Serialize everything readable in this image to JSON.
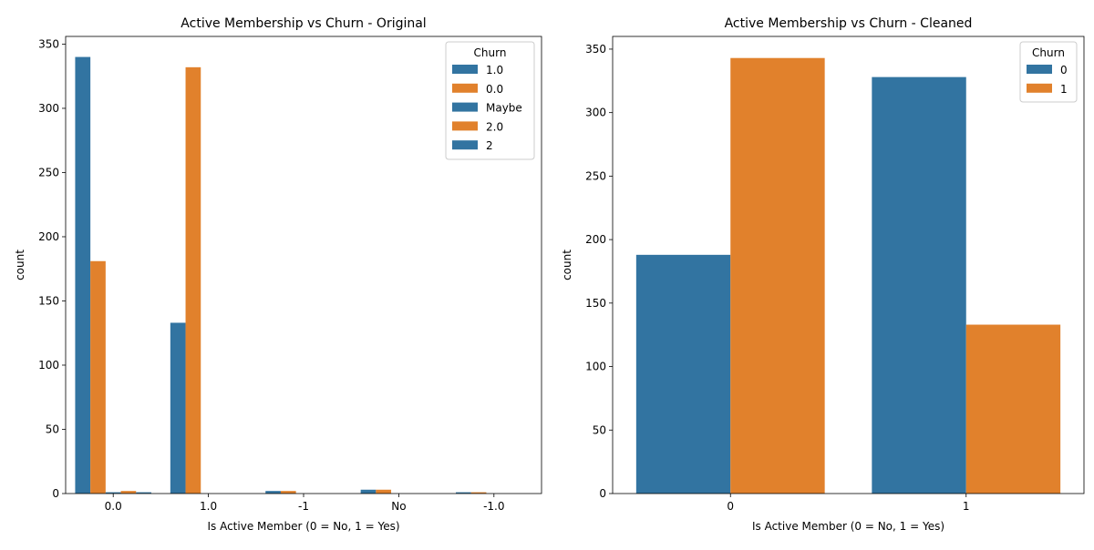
{
  "chart_data": [
    {
      "type": "bar",
      "title": "Active Membership vs Churn - Original",
      "xlabel": "Is Active Member (0 = No, 1 = Yes)",
      "ylabel": "count",
      "categories": [
        "0.0",
        "1.0",
        "-1",
        "No",
        "-1.0"
      ],
      "ylim": [
        0,
        356
      ],
      "yticks": [
        0,
        50,
        100,
        150,
        200,
        250,
        300,
        350
      ],
      "legend": {
        "title": "Churn",
        "placement": "top-right"
      },
      "series": [
        {
          "name": "1.0",
          "color": "#3274a1",
          "values": [
            340,
            133,
            2,
            3,
            1
          ]
        },
        {
          "name": "0.0",
          "color": "#e1812c",
          "values": [
            181,
            332,
            2,
            3,
            1
          ]
        },
        {
          "name": "Maybe",
          "color": "#3274a1",
          "values": [
            1,
            0,
            0,
            0,
            0
          ]
        },
        {
          "name": "2.0",
          "color": "#e1812c",
          "values": [
            2,
            0,
            0,
            0,
            0
          ]
        },
        {
          "name": "2",
          "color": "#3274a1",
          "values": [
            1,
            0,
            0,
            0,
            0
          ]
        }
      ],
      "grid": false
    },
    {
      "type": "bar",
      "title": "Active Membership vs Churn - Cleaned",
      "xlabel": "Is Active Member (0 = No, 1 = Yes)",
      "ylabel": "count",
      "categories": [
        "0",
        "1"
      ],
      "ylim": [
        0,
        360
      ],
      "yticks": [
        0,
        50,
        100,
        150,
        200,
        250,
        300,
        350
      ],
      "legend": {
        "title": "Churn",
        "placement": "top-right"
      },
      "series": [
        {
          "name": "0",
          "color": "#3274a1",
          "values": [
            188,
            328
          ]
        },
        {
          "name": "1",
          "color": "#e1812c",
          "values": [
            343,
            133
          ]
        }
      ],
      "grid": false
    }
  ]
}
